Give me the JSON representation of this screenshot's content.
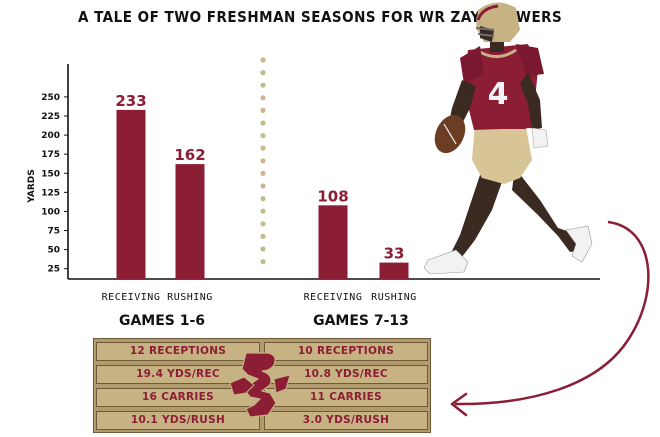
{
  "title": "A TALE OF TWO FRESHMAN SEASONS FOR WR ZAY FLOWERS",
  "colors": {
    "maroon": "#8b1d35",
    "gold": "#c7b284",
    "gold_dark": "#6d5a38",
    "dots": "#c9b98e"
  },
  "chart_data": {
    "type": "bar",
    "ylabel": "YARDS",
    "yticks": [
      25,
      50,
      75,
      100,
      125,
      150,
      175,
      200,
      225,
      250
    ],
    "ylim": [
      10,
      260
    ],
    "grid": false,
    "groups": [
      {
        "label": "GAMES 1-6",
        "bars": [
          {
            "category": "RECEIVING",
            "value": 233
          },
          {
            "category": "RUSHING",
            "value": 162
          }
        ]
      },
      {
        "label": "GAMES 7-13",
        "bars": [
          {
            "category": "RECEIVING",
            "value": 108
          },
          {
            "category": "RUSHING",
            "value": 33
          }
        ]
      }
    ]
  },
  "stats": {
    "left": [
      "12 RECEPTIONS",
      "19.4 YDS/REC",
      "16 CARRIES",
      "10.1 YDS/RUSH"
    ],
    "right": [
      "10 RECEPTIONS",
      "10.8 YDS/REC",
      "11 CARRIES",
      "3.0 YDS/RUSH"
    ]
  },
  "player": {
    "jersey_number": "4"
  }
}
